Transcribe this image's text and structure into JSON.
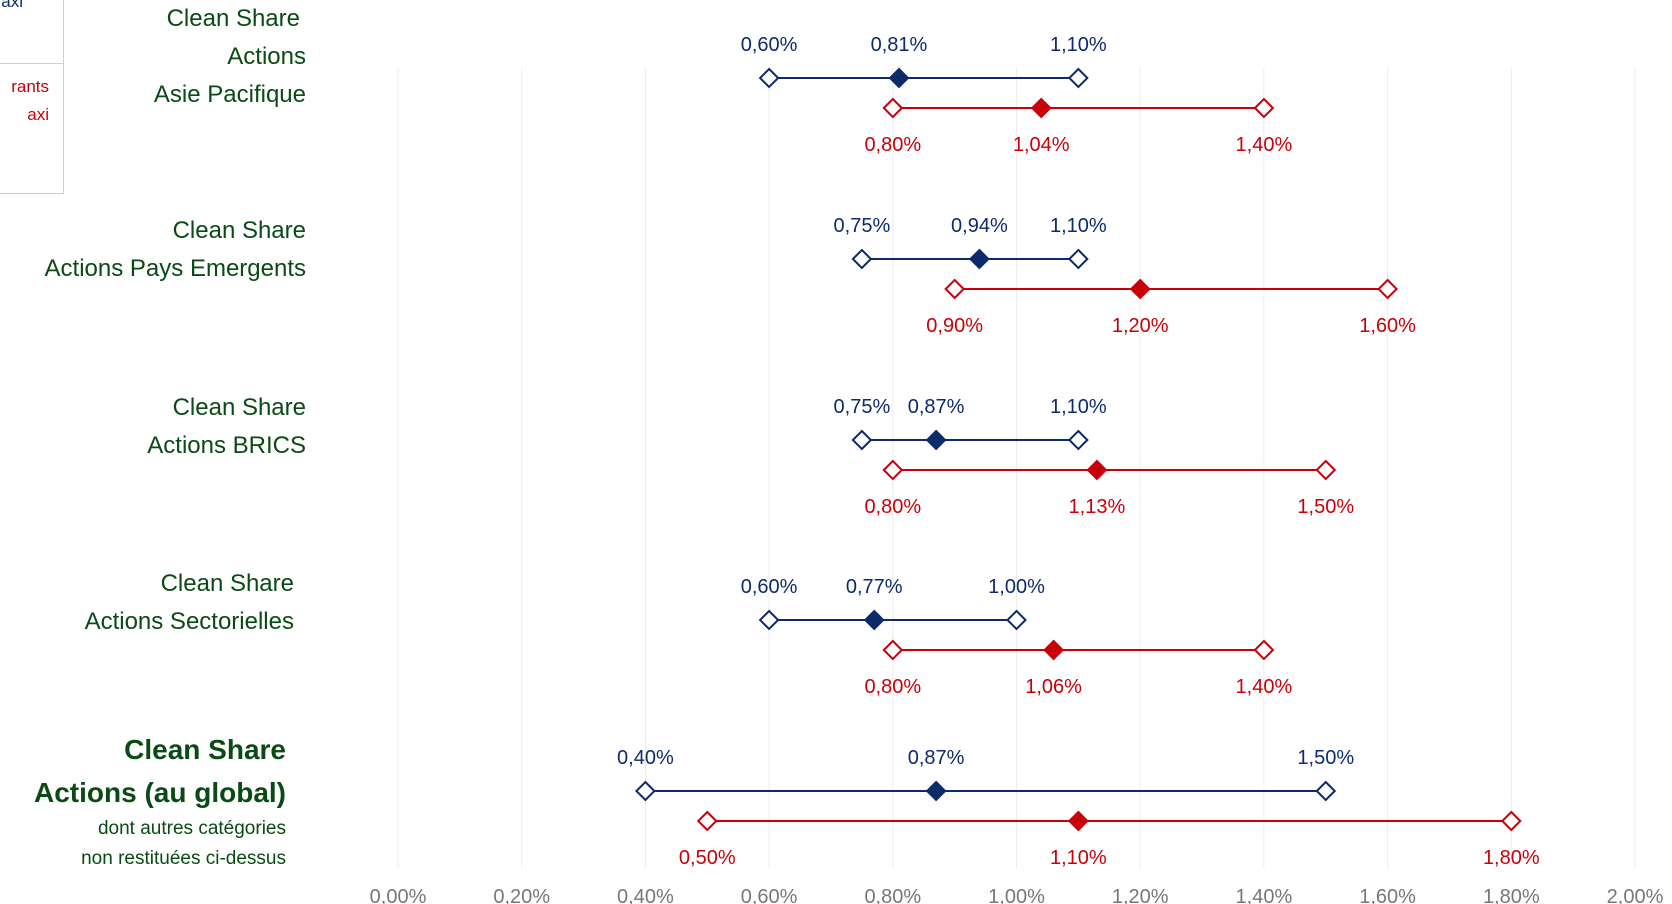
{
  "colors": {
    "low_fee": "#0d2a6b",
    "high_fee": "#c8000a",
    "category_text": "#0a4a14",
    "grid": "#ececec",
    "tick": "#777777"
  },
  "legend": {
    "line1": "axi",
    "line2a": "rants",
    "line2b": "axi"
  },
  "chart_data": {
    "type": "range-dot",
    "xlim": [
      0,
      2.0
    ],
    "x_ticks": [
      "0,00%",
      "0,20%",
      "0,40%",
      "0,60%",
      "0,80%",
      "1,00%",
      "1,20%",
      "1,40%",
      "1,60%",
      "1,80%",
      "2,00%"
    ],
    "grid": true,
    "categories": [
      {
        "label_lines": [
          "Clean Share",
          "Actions",
          "Asie Pacifique"
        ],
        "blue": {
          "min": 0.6,
          "mid": 0.81,
          "max": 1.1,
          "labels": [
            "0,60%",
            "0,81%",
            "1,10%"
          ]
        },
        "red": {
          "min": 0.8,
          "mid": 1.04,
          "max": 1.4,
          "labels": [
            "0,80%",
            "1,04%",
            "1,40%"
          ]
        }
      },
      {
        "label_lines": [
          "Clean Share",
          "Actions Pays Emergents"
        ],
        "blue": {
          "min": 0.75,
          "mid": 0.94,
          "max": 1.1,
          "labels": [
            "0,75%",
            "0,94%",
            "1,10%"
          ]
        },
        "red": {
          "min": 0.9,
          "mid": 1.2,
          "max": 1.6,
          "labels": [
            "0,90%",
            "1,20%",
            "1,60%"
          ]
        }
      },
      {
        "label_lines": [
          "Clean Share",
          "Actions BRICS"
        ],
        "blue": {
          "min": 0.75,
          "mid": 0.87,
          "max": 1.1,
          "labels": [
            "0,75%",
            "0,87%",
            "1,10%"
          ]
        },
        "red": {
          "min": 0.8,
          "mid": 1.13,
          "max": 1.5,
          "labels": [
            "0,80%",
            "1,13%",
            "1,50%"
          ]
        }
      },
      {
        "label_lines": [
          "Clean Share",
          "Actions Sectorielles"
        ],
        "blue": {
          "min": 0.6,
          "mid": 0.77,
          "max": 1.0,
          "labels": [
            "0,60%",
            "0,77%",
            "1,00%"
          ]
        },
        "red": {
          "min": 0.8,
          "mid": 1.06,
          "max": 1.4,
          "labels": [
            "0,80%",
            "1,06%",
            "1,40%"
          ]
        }
      },
      {
        "label_lines": [
          "Clean Share",
          "Actions (au global)"
        ],
        "label_sub": [
          "dont autres catégories",
          "non restituées ci-dessus"
        ],
        "blue": {
          "min": 0.4,
          "mid": 0.87,
          "max": 1.5,
          "labels": [
            "0,40%",
            "0,87%",
            "1,50%"
          ]
        },
        "red": {
          "min": 0.5,
          "mid": 1.1,
          "max": 1.8,
          "labels": [
            "0,50%",
            "1,10%",
            "1,80%"
          ]
        }
      }
    ]
  }
}
